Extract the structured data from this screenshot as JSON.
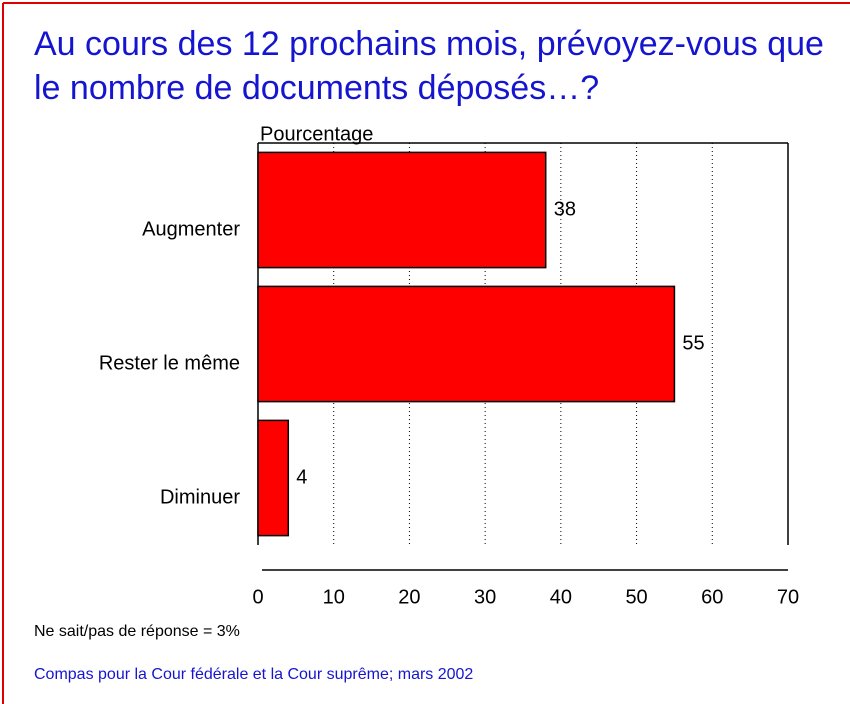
{
  "chart_data": {
    "type": "bar",
    "orientation": "horizontal",
    "title": "Au cours des 12 prochains mois, prévoyez-vous que le nombre de documents déposés…?",
    "x_label": "Pourcentage",
    "categories": [
      "Augmenter",
      "Rester le même",
      "Diminuer"
    ],
    "values": [
      38,
      55,
      4
    ],
    "color": "#ff0000",
    "xlim": [
      0,
      70
    ],
    "xticks": [
      0,
      10,
      20,
      30,
      40,
      50,
      60,
      70
    ],
    "grid": true,
    "note": "Ne sait/pas de réponse = 3%",
    "source": "Compas pour la Cour fédérale et la Cour suprême; mars 2002"
  }
}
